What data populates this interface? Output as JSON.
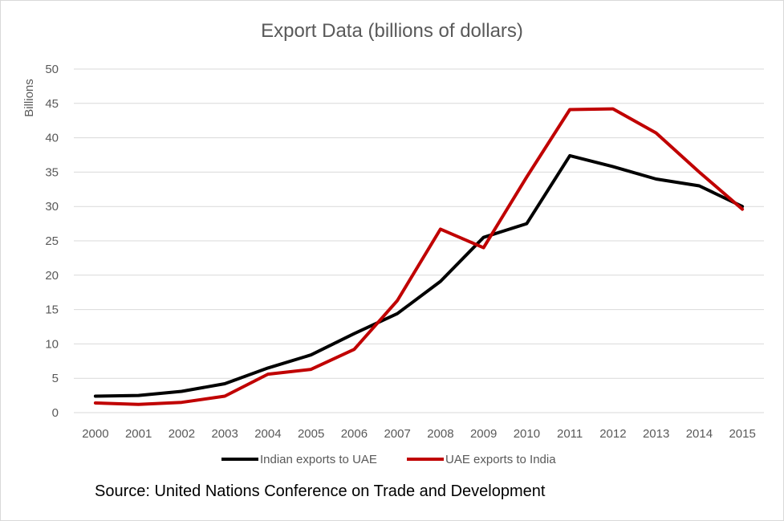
{
  "chart_data": {
    "type": "line",
    "title": "Export Data (billions of dollars)",
    "xlabel": "",
    "ylabel": "Billions",
    "ylim": [
      0,
      50
    ],
    "yticks": [
      0,
      5,
      10,
      15,
      20,
      25,
      30,
      35,
      40,
      45,
      50
    ],
    "categories": [
      "2000",
      "2001",
      "2002",
      "2003",
      "2004",
      "2005",
      "2006",
      "2007",
      "2008",
      "2009",
      "2010",
      "2011",
      "2012",
      "2013",
      "2014",
      "2015"
    ],
    "grid": true,
    "legend_position": "bottom",
    "series": [
      {
        "name": "Indian exports to UAE",
        "color": "#000000",
        "values": [
          2.4,
          2.5,
          3.1,
          4.2,
          6.5,
          8.4,
          11.5,
          14.4,
          19.1,
          25.5,
          27.5,
          37.4,
          35.8,
          34.0,
          33.0,
          30.0
        ]
      },
      {
        "name": "UAE exports to India",
        "color": "#c00000",
        "values": [
          1.4,
          1.2,
          1.5,
          2.4,
          5.6,
          6.3,
          9.2,
          16.3,
          26.7,
          24.0,
          34.3,
          44.1,
          44.2,
          40.7,
          35.0,
          29.6
        ]
      }
    ]
  },
  "source_note": "Source: United Nations Conference on Trade and Development"
}
